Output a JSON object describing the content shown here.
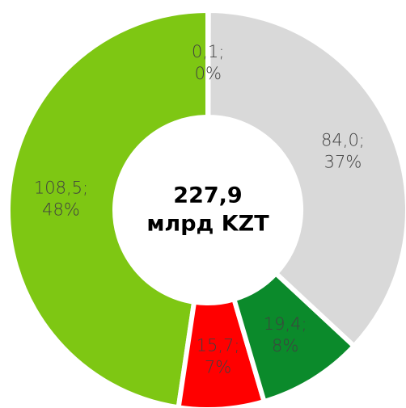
{
  "chart_data": {
    "type": "donut",
    "categories": [
      null,
      null,
      null,
      null,
      null
    ],
    "values": [
      0.1,
      84.0,
      19.4,
      15.7,
      108.5
    ],
    "value_labels": [
      "0,1;",
      "84,0;",
      "19,4;",
      "15,7;",
      "108,5;"
    ],
    "shares": [
      0,
      37,
      8,
      7,
      48
    ],
    "share_labels": [
      "0%",
      "37%",
      "8%",
      "7%",
      "48%"
    ],
    "colors": [
      "#a6a6a6",
      "#d9d9d9",
      "#0b8a2b",
      "#ff0000",
      "#7ec713"
    ],
    "center_value": "227,9",
    "center_unit": "млрд KZT"
  }
}
